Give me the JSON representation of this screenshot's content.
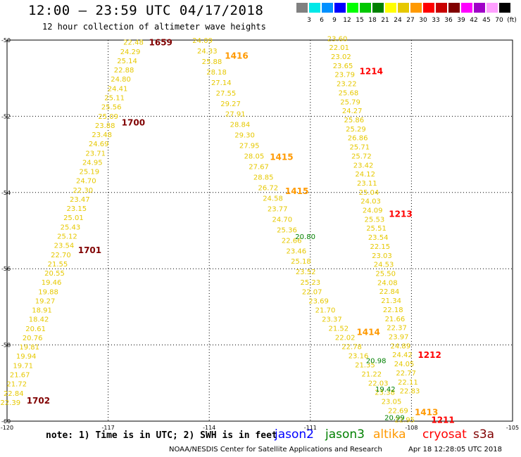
{
  "header": {
    "title": "12:00 — 23:59 UTC 04/17/2018",
    "subtitle": "12 hour collection of altimeter wave heights"
  },
  "legend": {
    "colors": [
      "#808080",
      "#00e8e8",
      "#0090ff",
      "#0000ff",
      "#00ff00",
      "#00c800",
      "#008000",
      "#ffff00",
      "#e6c800",
      "#ff9900",
      "#ff0000",
      "#c80000",
      "#800000",
      "#ff00ff",
      "#a000c8",
      "#ffa0ff",
      "#000000"
    ],
    "labels": [
      "3",
      "6",
      "9",
      "12",
      "15",
      "18",
      "21",
      "24",
      "27",
      "30",
      "33",
      "36",
      "39",
      "42",
      "45",
      "70",
      "(ft)"
    ]
  },
  "axes": {
    "lat_labels": [
      "-50",
      "-52",
      "-54",
      "-56",
      "-58",
      "-60"
    ],
    "lon_labels": [
      "-120",
      "-117",
      "-114",
      "-111",
      "-108",
      "-105"
    ]
  },
  "tracks": [
    {
      "satellite": "s3a",
      "time_labels": [
        {
          "text": "1659",
          "lat": -50.05
        },
        {
          "text": "1700",
          "lat": -52.15
        },
        {
          "text": "1701",
          "lat": -55.5
        },
        {
          "text": "1702",
          "lat": -59.45
        }
      ],
      "start": [
        -116.25,
        -50.05
      ],
      "end": [
        -119.9,
        -59.5
      ],
      "values": [
        "22.48",
        "24.29",
        "25.14",
        "22.88",
        "24.80",
        "24.41",
        "25.11",
        "25.56",
        "25.09",
        "23.88",
        "23.48",
        "24.69",
        "23.71",
        "24.95",
        "25.19",
        "24.70",
        "22.30",
        "23.47",
        "23.15",
        "25.01",
        "25.43",
        "25.12",
        "23.54",
        "22.70",
        "21.55",
        "20.55",
        "19.46",
        "19.88",
        "19.27",
        "18.91",
        "18.42",
        "20.61",
        "20.76",
        "19.81",
        "19.94",
        "19.71",
        "21.67",
        "21.72",
        "22.84",
        "22.39"
      ]
    },
    {
      "satellite": "altika",
      "time_labels": [
        {
          "text": "1416",
          "lat": -50.4
        },
        {
          "text": "1415",
          "lat": -53.05
        },
        {
          "text": "1415",
          "lat": -53.95
        }
      ],
      "start": [
        -114.2,
        -50.0
      ],
      "end": [
        -111.0,
        -56.35
      ],
      "values": [
        "24.09",
        "24.33",
        "25.88",
        "28.18",
        "27.14",
        "27.55",
        "29.27",
        "27.91",
        "28.84",
        "29.30",
        "27.95",
        "28.05",
        "27.67",
        "28.85",
        "26.72",
        "24.58",
        "23.77",
        "24.70",
        "25.36",
        "22.66",
        "23.46",
        "25.18",
        "23.52",
        "25.23"
      ]
    },
    {
      "satellite": "jason3",
      "time_labels": [],
      "start": [
        -111.15,
        -55.15
      ],
      "end": [
        -111.15,
        -55.15
      ],
      "values": [
        "20.80"
      ]
    },
    {
      "satellite": "altika",
      "time_labels": [
        {
          "text": "1414",
          "lat": -57.65
        },
        {
          "text": "1413",
          "lat": -59.75
        }
      ],
      "start": [
        -110.95,
        -56.6
      ],
      "end": [
        -108.2,
        -59.95
      ],
      "values": [
        "22.07",
        "23.69",
        "21.70",
        "23.37",
        "21.52",
        "22.02",
        "22.78",
        "23.16",
        "21.35",
        "21.22",
        "22.03",
        "23.38",
        "23.05",
        "22.69",
        "22.95"
      ]
    },
    {
      "satellite": "jason3",
      "time_labels": [],
      "start": [
        -109.05,
        -58.4
      ],
      "end": [
        -108.5,
        -59.9
      ],
      "values": [
        "20.98",
        "19.42",
        "20.99"
      ]
    },
    {
      "satellite": "cryosat",
      "time_labels": [
        {
          "text": "1214",
          "lat": -50.8
        },
        {
          "text": "1213",
          "lat": -54.55
        },
        {
          "text": "1212",
          "lat": -58.25
        },
        {
          "text": "1211",
          "lat": -59.95
        }
      ],
      "start": [
        -110.2,
        -49.95
      ],
      "end": [
        -108.05,
        -59.2
      ],
      "values": [
        "23.60",
        "22.01",
        "23.02",
        "23.65",
        "23.79",
        "23.22",
        "25.68",
        "25.79",
        "24.27",
        "25.86",
        "25.29",
        "26.86",
        "25.71",
        "25.72",
        "23.42",
        "24.12",
        "23.11",
        "25.04",
        "24.03",
        "24.09",
        "25.53",
        "25.51",
        "23.54",
        "22.15",
        "23.03",
        "24.53",
        "25.50",
        "24.08",
        "22.84",
        "21.34",
        "22.18",
        "21.66",
        "22.37",
        "23.97",
        "24.89",
        "24.42",
        "24.05",
        "22.77",
        "22.11",
        "22.83"
      ]
    }
  ],
  "colors": {
    "jason2": "#0000ff",
    "jason3": "#008000",
    "altika": "#ff9900",
    "cryosat": "#ff0000",
    "s3a": "#800000",
    "value": "#e6c800"
  },
  "footer": {
    "note": "note: 1) Time is in UTC; 2) SWH is in feet",
    "satellites": [
      "jason2",
      "jason3",
      "altika",
      "cryosat",
      "s3a"
    ],
    "credit": "NOAA/NESDIS Center for Satellite Applications and Research",
    "timestamp": "Apr 18 12:28:05 UTC 2018"
  }
}
